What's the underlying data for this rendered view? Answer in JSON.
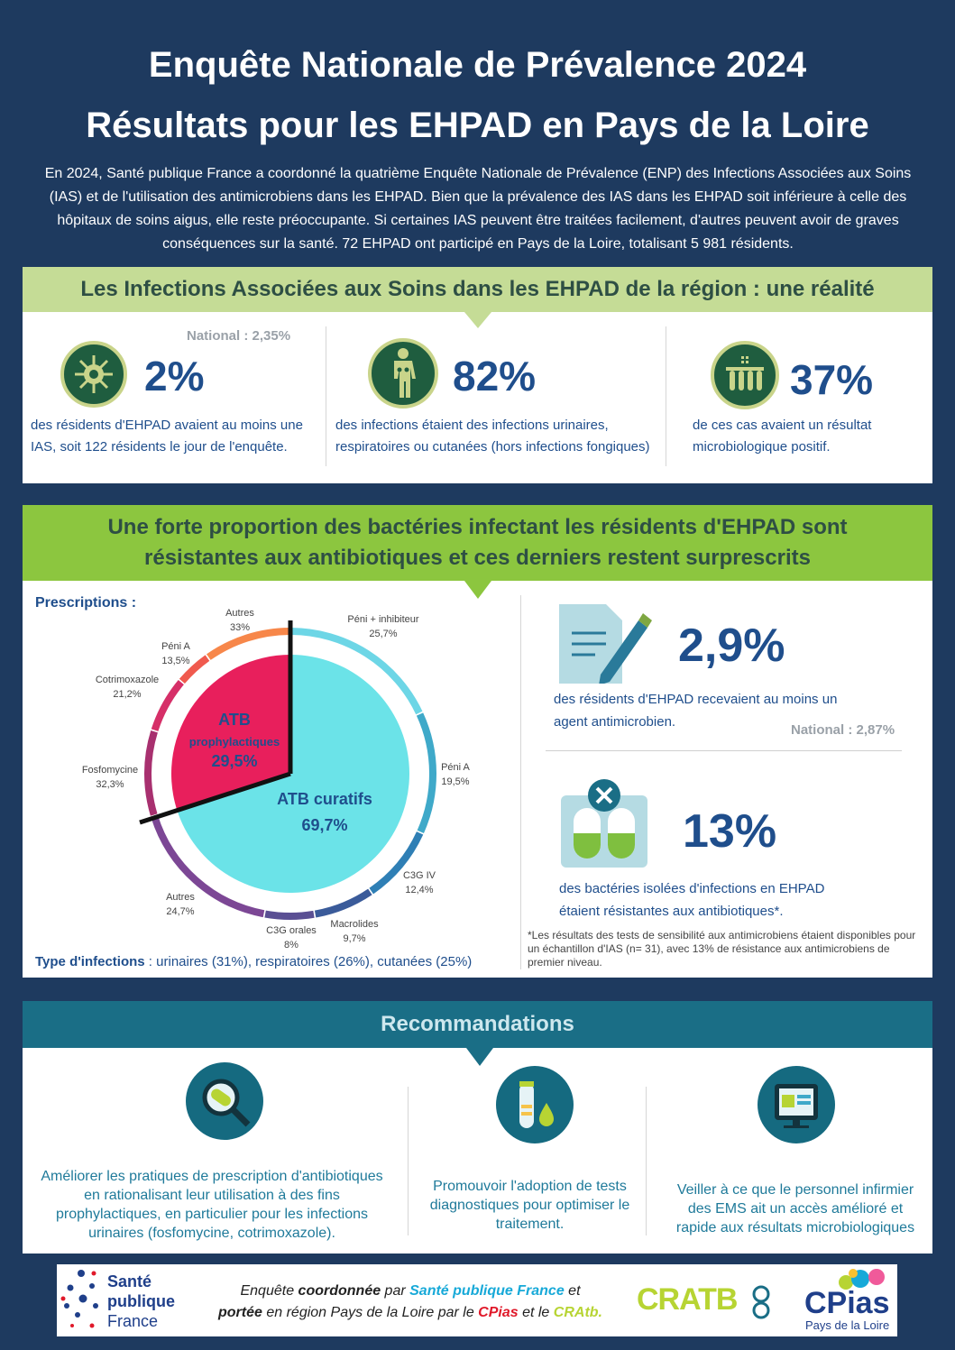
{
  "header": {
    "title_line1": "Enquête Nationale de Prévalence 2024",
    "title_line2": "Résultats pour les EHPAD en Pays de la Loire",
    "intro": "En 2024, Santé publique France a coordonné la quatrième Enquête Nationale de Prévalence (ENP) des Infections Associées aux Soins (IAS) et de l'utilisation des antimicrobiens dans les EHPAD. Bien que la prévalence des IAS dans les EHPAD soit inférieure à celle des hôpitaux de soins aigus, elle reste préoccupante.  Si certaines IAS peuvent être traitées facilement, d'autres peuvent avoir de graves conséquences sur la santé. 72 EHPAD ont participé en Pays de la Loire, totalisant 5 981 résidents."
  },
  "section1": {
    "heading": "Les Infections Associées aux Soins dans les EHPAD de la région : une réalité",
    "stats": [
      {
        "national": "National : 2,35%",
        "value": "2%",
        "text": "des résidents d'EHPAD avaient au moins une IAS, soit 122 résidents le jour de l'enquête.",
        "icon": "virus-icon"
      },
      {
        "national": "",
        "value": "82%",
        "text": "des infections étaient des infections urinaires, respiratoires ou cutanées (hors infections fongiques)",
        "icon": "human-body-icon"
      },
      {
        "national": "",
        "value": "37%",
        "text": "de ces cas avaient un résultat microbiologique positif.",
        "icon": "test-tubes-icon"
      }
    ]
  },
  "section2": {
    "heading_line1": "Une forte proportion des bactéries infectant les résidents d'EHPAD sont",
    "heading_line2": "résistantes aux antibiotiques et ces derniers restent surprescrits",
    "prescriptions_label": "Prescriptions :",
    "inner_labels": {
      "prophylactic_title": "ATB",
      "prophylactic_sub": "prophylactiques",
      "prophylactic_value": "29,5%",
      "curative_title": "ATB curatifs",
      "curative_value": "69,7%"
    },
    "infection_types_label": "Type d'infections",
    "infection_types_text": " : urinaires (31%), respiratoires (26%), cutanées (25%)",
    "stat_a": {
      "value": "2,9%",
      "text": "des résidents d'EHPAD recevaient au moins un agent antimicrobien.",
      "national": "National : 2,87%"
    },
    "stat_b": {
      "value": "13%",
      "text": "des bactéries isolées d'infections en EHPAD étaient résistantes aux antibiotiques*."
    },
    "footnote": "*Les résultats des tests de sensibilité aux antimicrobiens étaient disponibles pour un échantillon d'IAS (n= 31), avec 13% de résistance aux antimicrobiens de premier niveau."
  },
  "chart_data": {
    "type": "pie",
    "inner": [
      {
        "name": "ATB prophylactiques",
        "value": 29.5,
        "color": "#e81f5c"
      },
      {
        "name": "ATB curatifs",
        "value": 69.7,
        "color": "#6be3e8"
      }
    ],
    "outer_curative": [
      {
        "label": "Péni + inhibiteur",
        "value_label": "25,7%",
        "color": "#6dd6e6"
      },
      {
        "label": "Péni A",
        "value_label": "19,5%",
        "color": "#3fa9c9"
      },
      {
        "label": "C3G IV",
        "value_label": "12,4%",
        "color": "#2f7fb5"
      },
      {
        "label": "Macrolides",
        "value_label": "9,7%",
        "color": "#3a5b9a"
      },
      {
        "label": "C3G orales",
        "value_label": "8%",
        "color": "#5a4f93"
      },
      {
        "label": "Autres",
        "value_label": "24,7%",
        "color": "#7c4795"
      }
    ],
    "outer_prophylactic": [
      {
        "label": "Fosfomycine",
        "value_label": "32,3%",
        "color": "#a8306f"
      },
      {
        "label": "Cotrimoxazole",
        "value_label": "21,2%",
        "color": "#d62f68"
      },
      {
        "label": "Péni A",
        "value_label": "13,5%",
        "color": "#f05a4e"
      },
      {
        "label": "Autres",
        "value_label": "33%",
        "color": "#f7874a"
      }
    ]
  },
  "section3": {
    "heading": "Recommandations",
    "items": [
      {
        "text": "Améliorer les pratiques de prescription d'antibiotiques en rationalisant leur utilisation à des fins prophylactiques, en particulier pour les infections urinaires (fosfomycine, cotrimoxazole).",
        "icon": "magnifier-pill-icon"
      },
      {
        "text": "Promouvoir l'adoption de tests diagnostiques pour optimiser le traitement.",
        "icon": "test-tube-drop-icon"
      },
      {
        "text": "Veiller à ce que le personnel infirmier des EMS ait un accès amélioré et rapide aux résultats microbiologiques",
        "icon": "tablet-results-icon"
      }
    ]
  },
  "footer": {
    "logo_spf": [
      "Santé",
      "publique",
      "France"
    ],
    "text_a": "Enquête ",
    "text_b": "coordonnée",
    "text_c": " par ",
    "text_d": "Santé publique France",
    "text_e": " et",
    "text_f": "portée",
    "text_g": " en région Pays de la Loire par le ",
    "text_h": "CPias",
    "text_i": " et le ",
    "text_j": "CRAtb.",
    "logo_cratb": "CRATB",
    "logo_cpias": "CPias",
    "logo_cpias_sub": "Pays de la Loire",
    "colors": {
      "cyan": "#17a9d8",
      "red": "#e0192a",
      "lime": "#b7d433"
    }
  }
}
